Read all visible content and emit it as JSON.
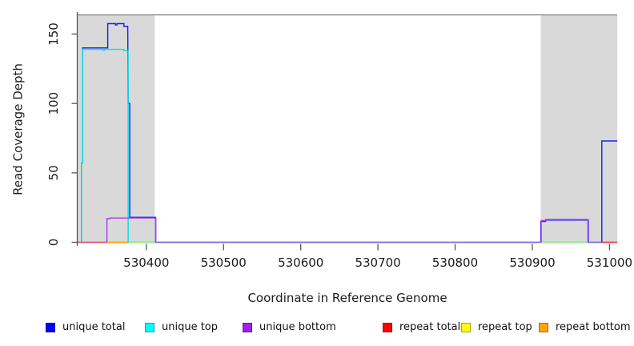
{
  "chart_data": {
    "type": "line",
    "title": "",
    "xlabel": "Coordinate in Reference Genome",
    "ylabel": "Read Coverage Depth",
    "x_axis": {
      "min": 530310,
      "max": 531012,
      "ticks": [
        530400,
        530500,
        530600,
        530700,
        530800,
        530900,
        531000
      ]
    },
    "y_axis": {
      "min": 0,
      "max": 165,
      "ticks": [
        0,
        50,
        100,
        150
      ]
    },
    "shaded_regions": [
      {
        "from": 530310,
        "to": 530411
      },
      {
        "from": 530911,
        "to": 531010
      }
    ],
    "region_color": "#D9D9D9",
    "top_boundary_line": {
      "value": 163.8,
      "from": 530310,
      "to": 531010,
      "color": "#888888"
    },
    "series": [
      {
        "name": "unique total",
        "color": "#1A1AFF",
        "segments": [
          [
            [
              530316,
              0
            ],
            [
              530316,
              57
            ],
            [
              530317.5,
              57
            ],
            [
              530317.5,
              140
            ],
            [
              530350,
              140
            ],
            [
              530350,
              157.5
            ],
            [
              530360,
              157.5
            ],
            [
              530360,
              156.5
            ],
            [
              530362,
              156.5
            ],
            [
              530362,
              157.5
            ],
            [
              530371,
              157.5
            ],
            [
              530371,
              155.5
            ],
            [
              530376,
              155.5
            ],
            [
              530376.5,
              100
            ],
            [
              530378.5,
              100
            ],
            [
              530378.5,
              18
            ],
            [
              530412,
              18
            ],
            [
              530412,
              0
            ]
          ],
          [
            [
              530911,
              0
            ],
            [
              530911,
              15
            ],
            [
              530917,
              15
            ],
            [
              530917,
              16
            ],
            [
              530972.5,
              16
            ],
            [
              530972.5,
              0
            ]
          ],
          [
            [
              530990,
              0
            ],
            [
              530990,
              73
            ],
            [
              531010,
              73
            ]
          ]
        ]
      },
      {
        "name": "unique top",
        "color": "#00DDE8",
        "segments": [
          [
            [
              530316,
              0
            ],
            [
              530316,
              57
            ],
            [
              530317.5,
              57
            ],
            [
              530317.5,
              139
            ],
            [
              530344,
              139
            ],
            [
              530344,
              138.3
            ],
            [
              530346,
              138.3
            ],
            [
              530346,
              139
            ],
            [
              530371,
              139
            ],
            [
              530371,
              138
            ],
            [
              530376.5,
              138
            ],
            [
              530376.5,
              0
            ]
          ]
        ]
      },
      {
        "name": "unique bottom",
        "color": "#A93BE8",
        "segments": [
          [
            [
              530349,
              0
            ],
            [
              530349,
              17
            ],
            [
              530353,
              17
            ],
            [
              530353,
              17.5
            ],
            [
              530412.3,
              17.5
            ],
            [
              530412.3,
              0
            ]
          ],
          [
            [
              530911.5,
              0
            ],
            [
              530911.5,
              15.6
            ],
            [
              530917.5,
              15.6
            ],
            [
              530917.5,
              16.4
            ],
            [
              530972,
              16.4
            ],
            [
              530972,
              0
            ]
          ]
        ]
      },
      {
        "name": "repeat total",
        "color": "#FF0000",
        "segments": [
          [
            [
              530310,
              0
            ],
            [
              531010,
              0
            ]
          ]
        ]
      },
      {
        "name": "repeat top",
        "color": "#FFFF00",
        "segments": [
          [
            [
              530310,
              0
            ],
            [
              531010,
              0
            ]
          ]
        ]
      },
      {
        "name": "repeat bottom",
        "color": "#FFA500",
        "segments": [
          [
            [
              530310,
              0
            ],
            [
              531010,
              0
            ]
          ]
        ]
      }
    ],
    "zero_line_overlap_segments": [
      {
        "from": 530310,
        "to": 530349,
        "color": "#E0506E"
      },
      {
        "from": 530349,
        "to": 530377,
        "color": "#FFA500"
      },
      {
        "from": 530377,
        "to": 530411,
        "color": "#90EE90"
      },
      {
        "from": 530411,
        "to": 530911,
        "color": "#7B68EE"
      },
      {
        "from": 530911,
        "to": 530972,
        "color": "#90EE90"
      },
      {
        "from": 530972,
        "to": 530989.5,
        "color": "#7B68EE"
      },
      {
        "from": 530989.5,
        "to": 531010,
        "color": "#F03838"
      }
    ]
  },
  "legend": {
    "items": [
      {
        "label": "unique total",
        "color": "#0000FF",
        "border": "#0000A8"
      },
      {
        "label": "unique top",
        "color": "#00FFFF",
        "border": "#00A8B0"
      },
      {
        "label": "unique bottom",
        "color": "#A020F0",
        "border": "#6E10A8"
      },
      {
        "label": "repeat total",
        "color": "#FF0000",
        "border": "#A80000"
      },
      {
        "label": "repeat top",
        "color": "#FFFF00",
        "border": "#A8A400"
      },
      {
        "label": "repeat bottom",
        "color": "#FFA500",
        "border": "#A87000"
      }
    ]
  }
}
